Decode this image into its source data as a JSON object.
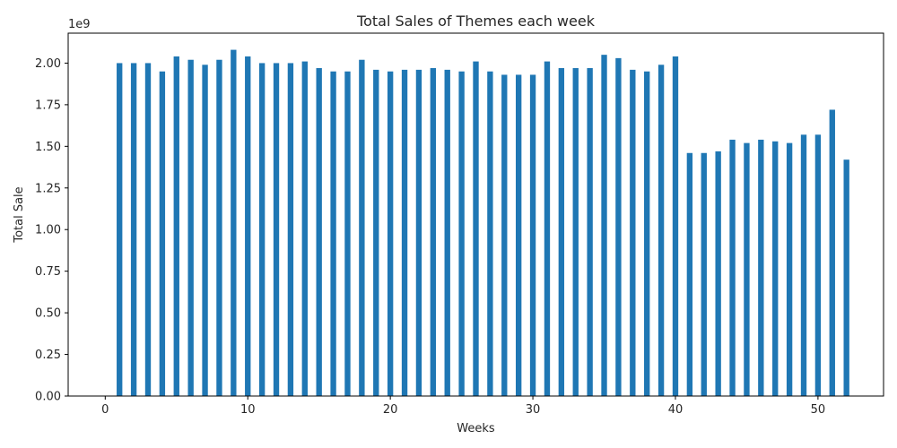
{
  "chart_data": {
    "type": "bar",
    "title": "Total Sales of Themes each week",
    "xlabel": "Weeks",
    "ylabel": "Total Sale",
    "y_offset_label": "1e9",
    "xlim": [
      -2.6,
      54.6
    ],
    "ylim": [
      0,
      2.18
    ],
    "x_ticks": [
      0,
      10,
      20,
      30,
      40,
      50
    ],
    "x_tick_labels": [
      "0",
      "10",
      "20",
      "30",
      "40",
      "50"
    ],
    "y_ticks": [
      0,
      0.25,
      0.5,
      0.75,
      1.0,
      1.25,
      1.5,
      1.75,
      2.0
    ],
    "y_tick_labels": [
      "0.00",
      "0.25",
      "0.50",
      "0.75",
      "1.00",
      "1.25",
      "1.50",
      "1.75",
      "2.00"
    ],
    "bar_color": "#1f77b4",
    "grid": false,
    "x": [
      1,
      2,
      3,
      4,
      5,
      6,
      7,
      8,
      9,
      10,
      11,
      12,
      13,
      14,
      15,
      16,
      17,
      18,
      19,
      20,
      21,
      22,
      23,
      24,
      25,
      26,
      27,
      28,
      29,
      30,
      31,
      32,
      33,
      34,
      35,
      36,
      37,
      38,
      39,
      40,
      41,
      42,
      43,
      44,
      45,
      46,
      47,
      48,
      49,
      50,
      51,
      52
    ],
    "values": [
      2.0,
      2.0,
      2.0,
      1.95,
      2.04,
      2.02,
      1.99,
      2.02,
      2.08,
      2.04,
      2.0,
      2.0,
      2.0,
      2.01,
      1.97,
      1.95,
      1.95,
      2.02,
      1.96,
      1.95,
      1.96,
      1.96,
      1.97,
      1.96,
      1.95,
      2.01,
      1.95,
      1.93,
      1.93,
      1.93,
      2.01,
      1.97,
      1.97,
      1.97,
      2.05,
      2.03,
      1.96,
      1.95,
      1.99,
      2.04,
      1.46,
      1.46,
      1.47,
      1.54,
      1.52,
      1.54,
      1.53,
      1.52,
      1.57,
      1.57,
      1.72,
      1.42
    ]
  }
}
